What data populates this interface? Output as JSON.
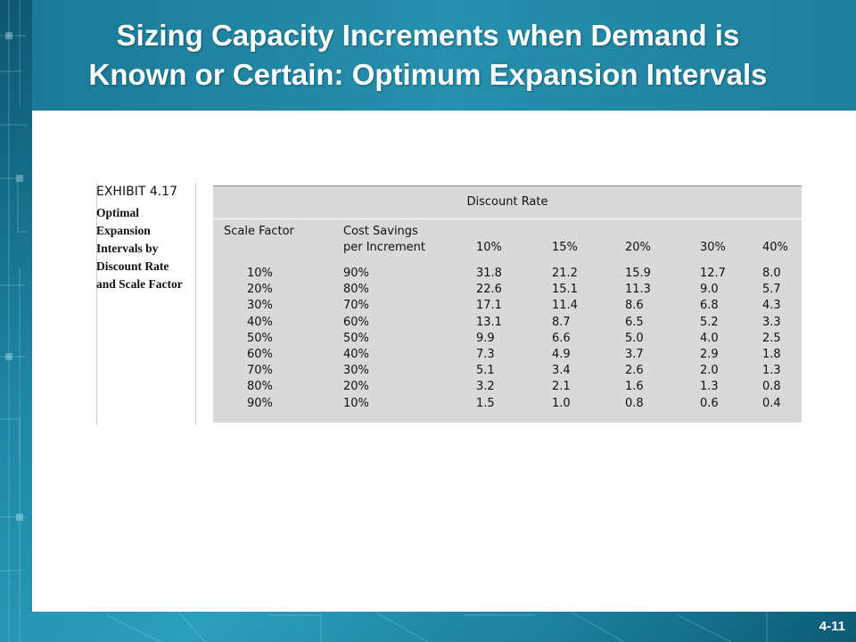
{
  "slide": {
    "title_line1": "Sizing Capacity Increments when Demand is",
    "title_line2": "Known or Certain: Optimum Expansion Intervals",
    "page_number": "4-11"
  },
  "exhibit": {
    "number": "EXHIBIT 4.17",
    "caption": [
      "Optimal",
      "Expansion",
      "Intervals by",
      "Discount Rate",
      "and Scale Factor"
    ],
    "group_header": "Discount Rate",
    "columns": {
      "scale_factor": "Scale Factor",
      "cost_savings_line1": "Cost Savings",
      "cost_savings_line2": "per Increment",
      "rates": [
        "10%",
        "15%",
        "20%",
        "30%",
        "40%"
      ]
    },
    "rows": [
      {
        "scale": "10%",
        "savings": "90%",
        "values": [
          "31.8",
          "21.2",
          "15.9",
          "12.7",
          "8.0"
        ]
      },
      {
        "scale": "20%",
        "savings": "80%",
        "values": [
          "22.6",
          "15.1",
          "11.3",
          "9.0",
          "5.7"
        ]
      },
      {
        "scale": "30%",
        "savings": "70%",
        "values": [
          "17.1",
          "11.4",
          "8.6",
          "6.8",
          "4.3"
        ]
      },
      {
        "scale": "40%",
        "savings": "60%",
        "values": [
          "13.1",
          "8.7",
          "6.5",
          "5.2",
          "3.3"
        ]
      },
      {
        "scale": "50%",
        "savings": "50%",
        "values": [
          "9.9",
          "6.6",
          "5.0",
          "4.0",
          "2.5"
        ]
      },
      {
        "scale": "60%",
        "savings": "40%",
        "values": [
          "7.3",
          "4.9",
          "3.7",
          "2.9",
          "1.8"
        ]
      },
      {
        "scale": "70%",
        "savings": "30%",
        "values": [
          "5.1",
          "3.4",
          "2.6",
          "2.0",
          "1.3"
        ]
      },
      {
        "scale": "80%",
        "savings": "20%",
        "values": [
          "3.2",
          "2.1",
          "1.6",
          "1.3",
          "0.8"
        ]
      },
      {
        "scale": "90%",
        "savings": "10%",
        "values": [
          "1.5",
          "1.0",
          "0.8",
          "0.6",
          "0.4"
        ]
      }
    ]
  }
}
